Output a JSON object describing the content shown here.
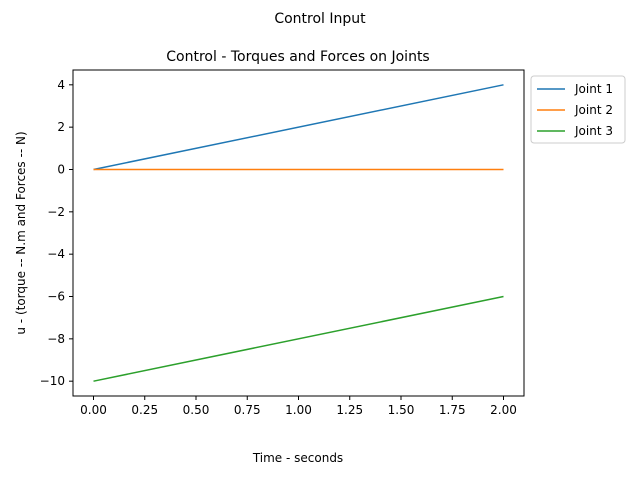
{
  "figure_title": "Control Input",
  "chart_data": {
    "type": "line",
    "title": "Control - Torques and Forces on Joints",
    "xlabel": "Time - seconds",
    "ylabel": "u - (torque -- N.m and Forces -- N)",
    "xlim": [
      -0.1,
      2.1
    ],
    "ylim": [
      -10.7,
      4.7
    ],
    "xticks": [
      0.0,
      0.25,
      0.5,
      0.75,
      1.0,
      1.25,
      1.5,
      1.75,
      2.0
    ],
    "xtick_labels": [
      "0.00",
      "0.25",
      "0.50",
      "0.75",
      "1.00",
      "1.25",
      "1.50",
      "1.75",
      "2.00"
    ],
    "yticks": [
      4,
      2,
      0,
      -2,
      -4,
      -6,
      -8,
      -10
    ],
    "ytick_labels": [
      "4",
      "2",
      "0",
      "−2",
      "−4",
      "−6",
      "−8",
      "−10"
    ],
    "grid": false,
    "legend_placement": "outside-top-right",
    "series": [
      {
        "name": "Joint 1",
        "color": "#1f77b4",
        "x": [
          0.0,
          2.0
        ],
        "y": [
          0.0,
          4.0
        ]
      },
      {
        "name": "Joint 2",
        "color": "#ff7f0e",
        "x": [
          0.0,
          2.0
        ],
        "y": [
          0.0,
          0.0
        ]
      },
      {
        "name": "Joint 3",
        "color": "#2ca02c",
        "x": [
          0.0,
          2.0
        ],
        "y": [
          -10.0,
          -6.0
        ]
      }
    ]
  }
}
